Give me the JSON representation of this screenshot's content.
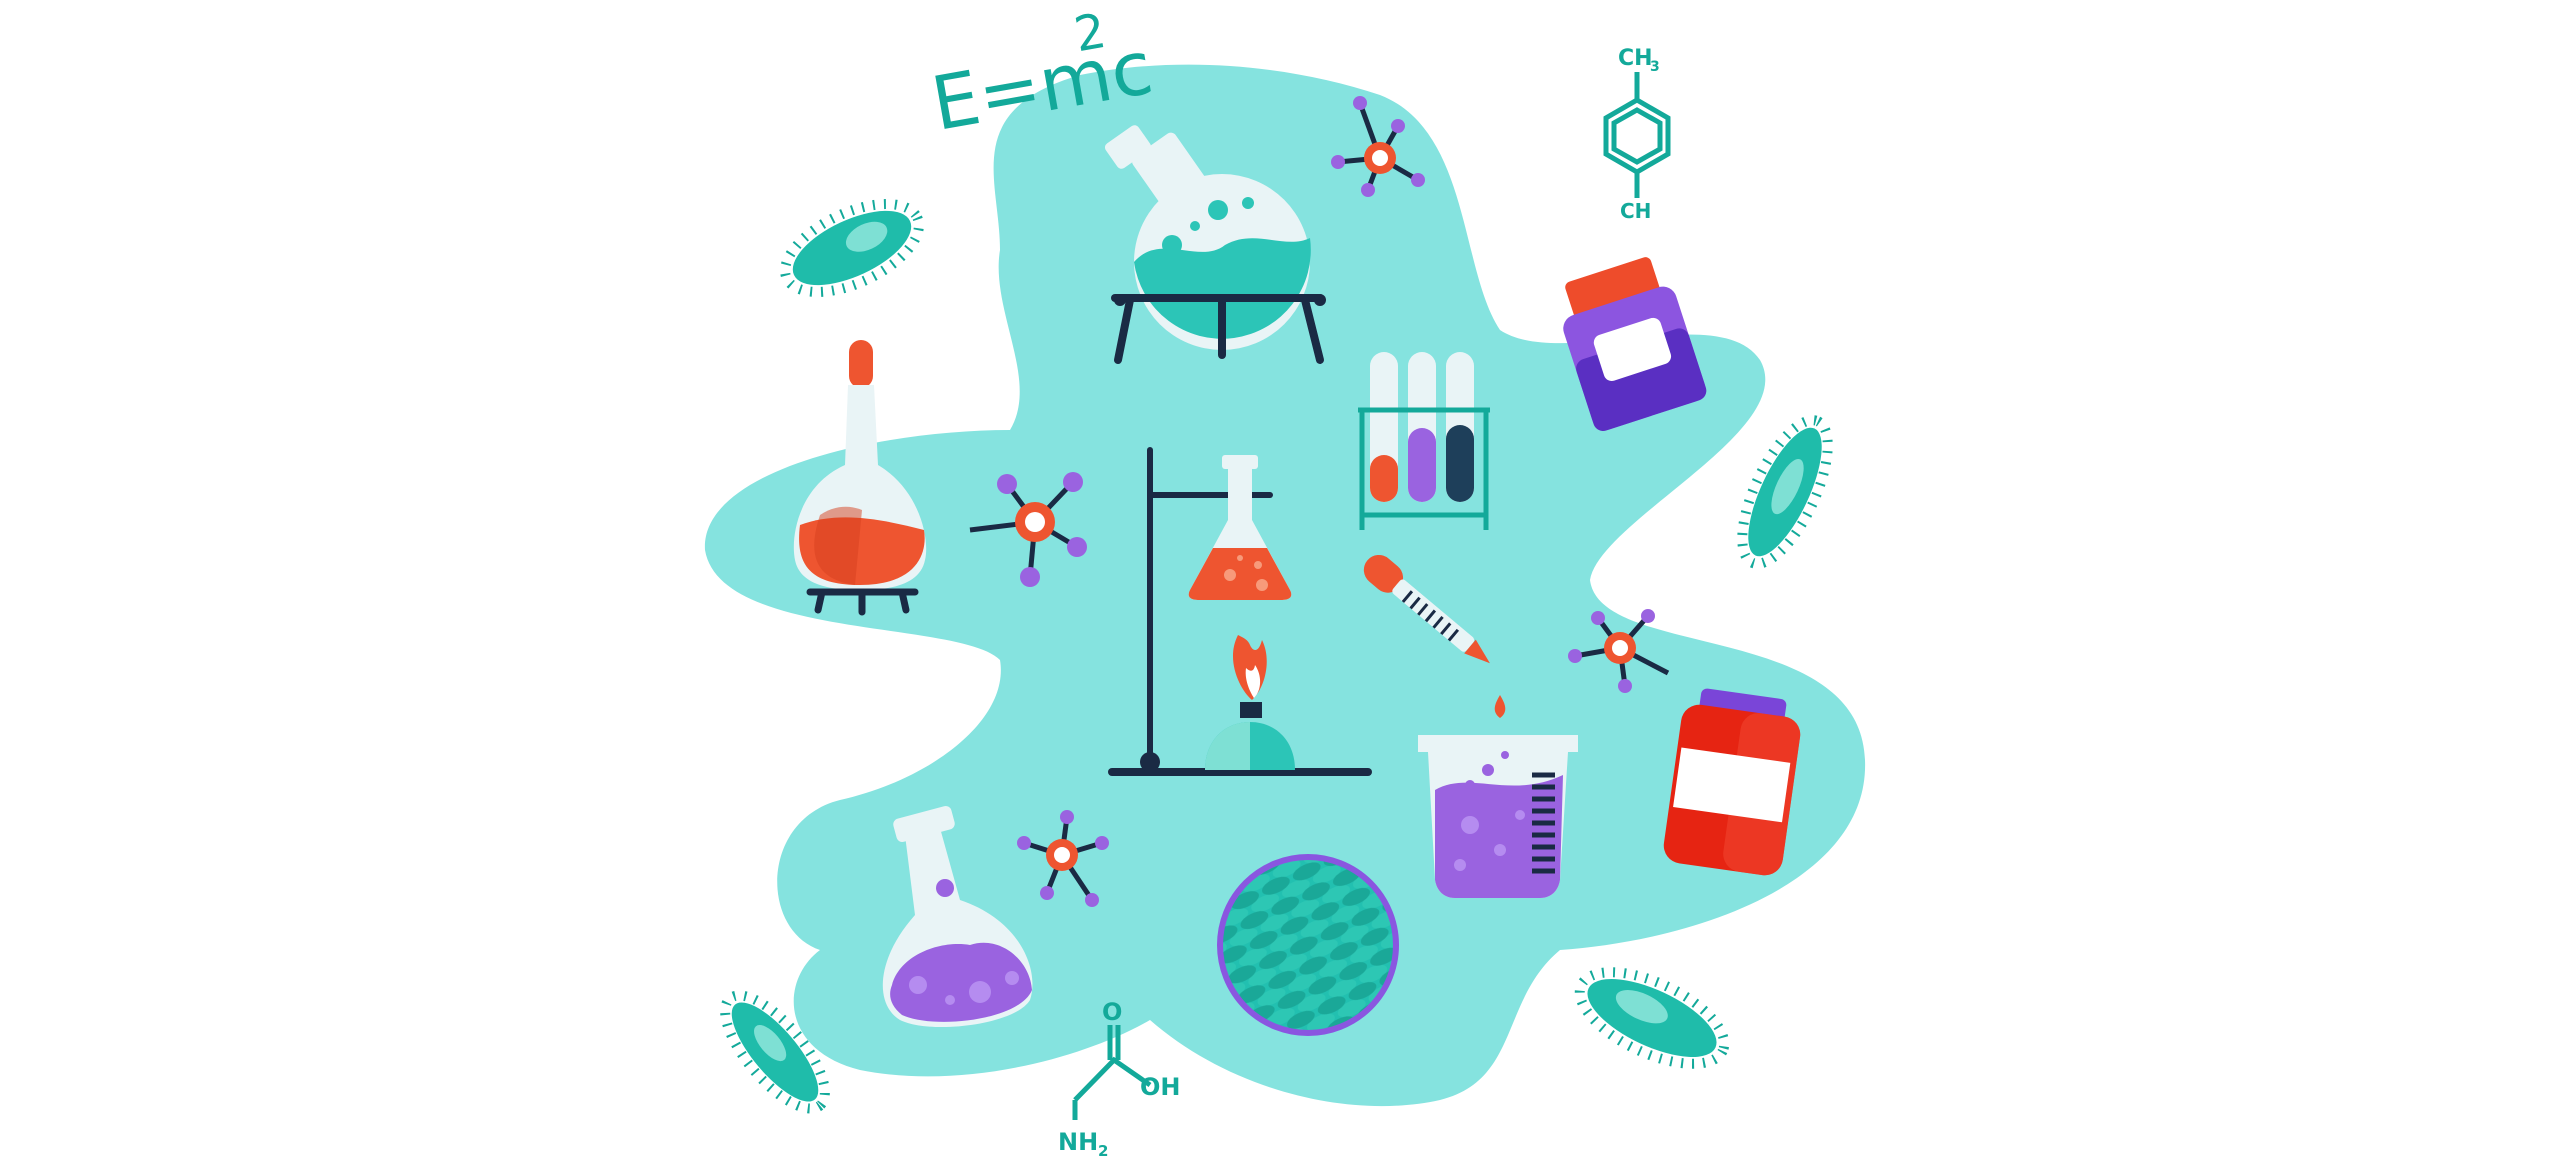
{
  "illustration": {
    "subject": "Science laboratory doodle illustration",
    "colors": {
      "blob": "#85e3df",
      "teal": "#13a99a",
      "teal_dark": "#0f8f82",
      "orange": "#ee5530",
      "purple": "#9a63e0",
      "purple_dark": "#5a2fc2",
      "navy": "#1a2a44",
      "red": "#e62412",
      "glass": "#e9f4f6"
    },
    "formula": {
      "base": "E=mc",
      "exponent": "2"
    },
    "labels": {
      "toluene_top": "CH",
      "toluene_top_sub": "3",
      "toluene_bottom": "CH",
      "amino_o": "O",
      "amino_oh": "OH",
      "amino_nh": "NH",
      "amino_nh_sub": "2"
    }
  }
}
